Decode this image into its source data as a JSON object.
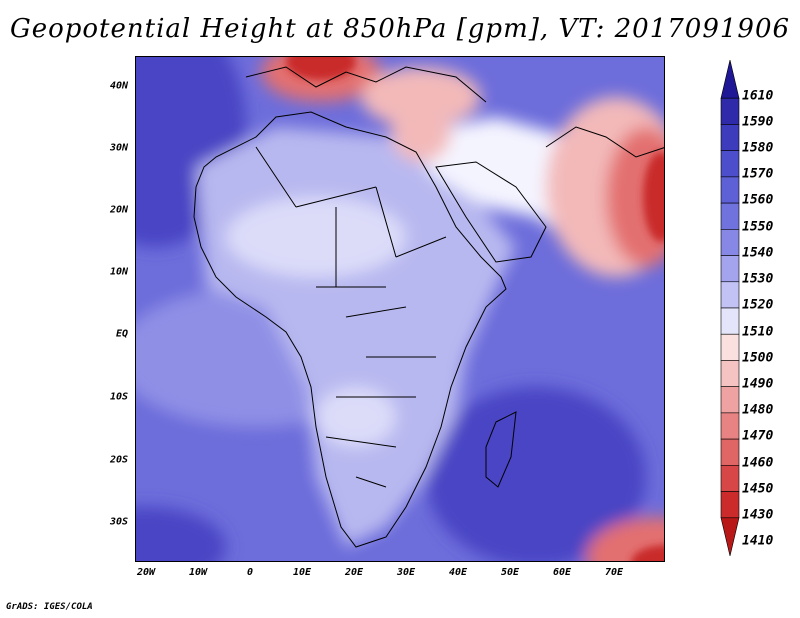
{
  "title": "Geopotential Height at 850hPa [gpm], VT: 2017091906",
  "credit": "GrADS: IGES/COLA",
  "latitude_labels": [
    "40N",
    "30N",
    "20N",
    "10N",
    "EQ",
    "10S",
    "20S",
    "30S"
  ],
  "longitude_labels": [
    "20W",
    "10W",
    "0",
    "10E",
    "20E",
    "30E",
    "40E",
    "50E",
    "60E",
    "70E"
  ],
  "colorbar": {
    "labels": [
      "1610",
      "1590",
      "1580",
      "1570",
      "1560",
      "1550",
      "1540",
      "1530",
      "1520",
      "1510",
      "1500",
      "1490",
      "1480",
      "1470",
      "1460",
      "1450",
      "1430",
      "1410"
    ],
    "colors": [
      "#1f1796",
      "#2e2aa9",
      "#3c3cbc",
      "#4c4ecb",
      "#5e60d6",
      "#7072de",
      "#8787e6",
      "#a4a4ee",
      "#c2c2f5",
      "#e4e4fb",
      "#fbe0e0",
      "#f6c3c3",
      "#efa2a2",
      "#e88383",
      "#e06565",
      "#d84747",
      "#cc2b2b",
      "#b81818"
    ]
  },
  "map": {
    "region": "Africa and surrounding region",
    "colors": {
      "ocean_deep": "#4a44c4",
      "ocean_mid": "#6d6ddb",
      "ocean_light": "#8f8fe6",
      "land_light": "#b8b8f0",
      "land_pale": "#dcdcf9",
      "white_band": "#f4f4ff",
      "red_light": "#f3b9b9",
      "red_mid": "#e37070",
      "red_dark": "#c92929"
    }
  }
}
